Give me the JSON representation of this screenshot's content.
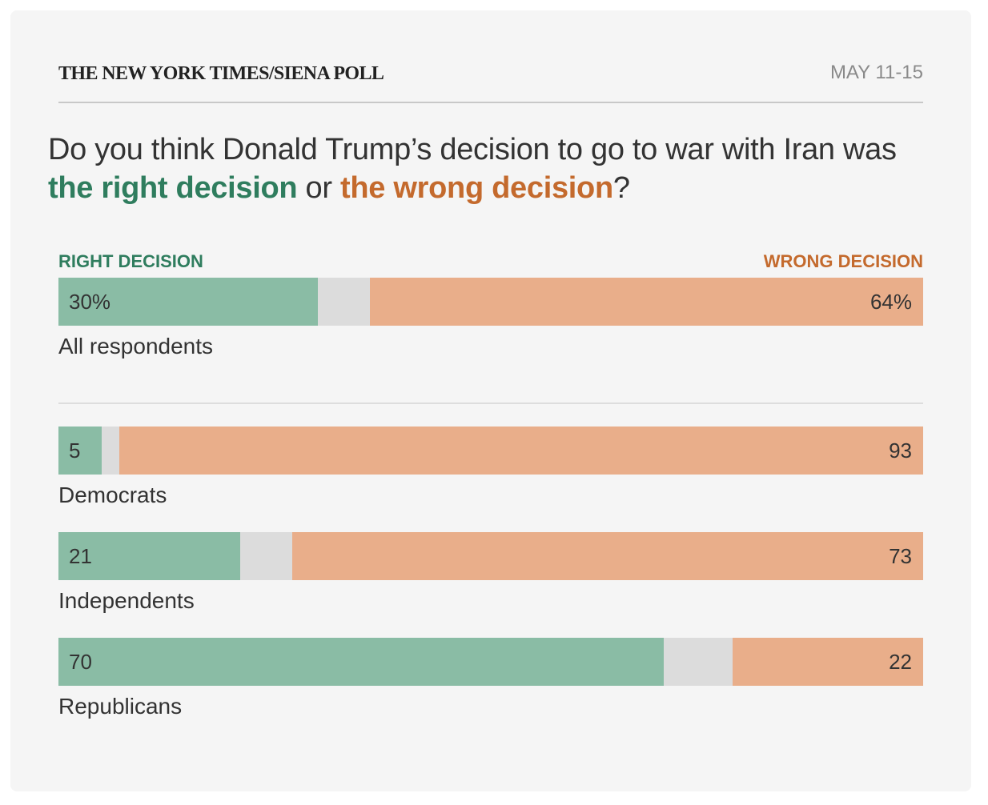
{
  "header": {
    "source": "THE NEW YORK TIMES/SIENA POLL",
    "dates": "MAY 11-15"
  },
  "question": {
    "prefix": "Do you think Donald Trump’s decision to go to war with Iran was ",
    "right_text": "the right decision",
    "middle": " or ",
    "wrong_text": "the wrong decision",
    "suffix": "?"
  },
  "legend": {
    "right": "RIGHT DECISION",
    "wrong": "WRONG DECISION"
  },
  "colors": {
    "right_text": "#2f7d5e",
    "wrong_text": "#c46a2d",
    "right_bar": "#8abca5",
    "wrong_bar": "#e9ae8a",
    "neutral_bar": "#dcdcdc"
  },
  "chart_data": {
    "type": "bar",
    "orientation": "horizontal-stacked",
    "series": [
      {
        "name": "RIGHT DECISION",
        "values": [
          30,
          5,
          21,
          70
        ]
      },
      {
        "name": "WRONG DECISION",
        "values": [
          64,
          93,
          73,
          22
        ]
      }
    ],
    "categories": [
      "All respondents",
      "Democrats",
      "Independents",
      "Republicans"
    ],
    "rows": [
      {
        "label": "All respondents",
        "right": 30,
        "wrong": 64,
        "right_label": "30%",
        "wrong_label": "64%"
      },
      {
        "label": "Democrats",
        "right": 5,
        "wrong": 93,
        "right_label": "5",
        "wrong_label": "93"
      },
      {
        "label": "Independents",
        "right": 21,
        "wrong": 73,
        "right_label": "21",
        "wrong_label": "73"
      },
      {
        "label": "Republicans",
        "right": 70,
        "wrong": 22,
        "right_label": "70",
        "wrong_label": "22"
      }
    ],
    "xlim": [
      0,
      100
    ]
  }
}
